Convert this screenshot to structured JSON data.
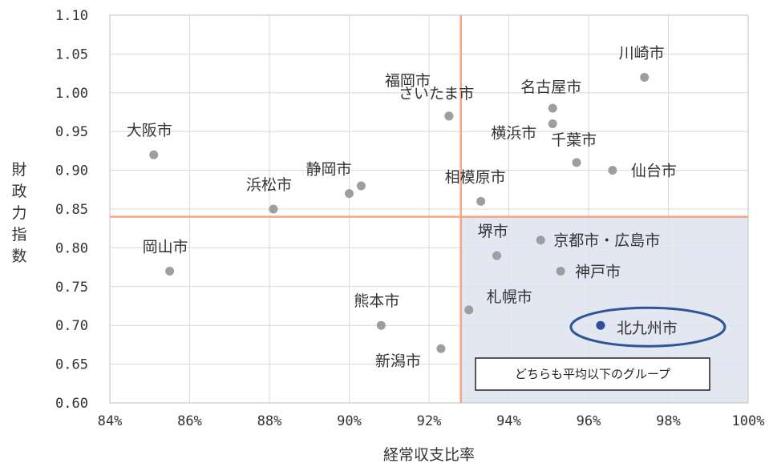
{
  "chart_data": {
    "type": "scatter",
    "title": "",
    "xlabel": "経常収支比率",
    "ylabel": "財政力指数",
    "xlim": [
      84,
      100
    ],
    "ylim": [
      0.6,
      1.1
    ],
    "x_ticks": [
      "84%",
      "86%",
      "88%",
      "90%",
      "92%",
      "94%",
      "96%",
      "98%",
      "100%"
    ],
    "y_ticks": [
      "0.60",
      "0.65",
      "0.70",
      "0.75",
      "0.80",
      "0.85",
      "0.90",
      "0.95",
      "1.00",
      "1.05",
      "1.10"
    ],
    "grid": true,
    "average_lines": {
      "x": 92.8,
      "y": 0.84
    },
    "highlight_region_label": "どちらも平均以下のグループ",
    "points": [
      {
        "name": "大阪市",
        "x": 85.1,
        "y": 0.92
      },
      {
        "name": "岡山市",
        "x": 85.5,
        "y": 0.77
      },
      {
        "name": "浜松市",
        "x": 88.1,
        "y": 0.85
      },
      {
        "name": "静岡市",
        "x": 90.0,
        "y": 0.87
      },
      {
        "name": "",
        "x": 90.3,
        "y": 0.88
      },
      {
        "name": "熊本市",
        "x": 90.8,
        "y": 0.7
      },
      {
        "name": "福岡市",
        "x": 92.5,
        "y": 0.97
      },
      {
        "name": "新潟市",
        "x": 92.3,
        "y": 0.67
      },
      {
        "name": "さいたま市",
        "x": 92.5,
        "y": 0.97
      },
      {
        "name": "札幌市",
        "x": 93.0,
        "y": 0.72
      },
      {
        "name": "相模原市",
        "x": 93.3,
        "y": 0.86
      },
      {
        "name": "堺市",
        "x": 93.7,
        "y": 0.79
      },
      {
        "name": "京都市・広島市",
        "x": 94.8,
        "y": 0.81
      },
      {
        "name": "名古屋市",
        "x": 95.1,
        "y": 0.98
      },
      {
        "name": "横浜市",
        "x": 95.1,
        "y": 0.96
      },
      {
        "name": "神戸市",
        "x": 95.3,
        "y": 0.77
      },
      {
        "name": "千葉市",
        "x": 95.7,
        "y": 0.91
      },
      {
        "name": "北九州市",
        "x": 96.3,
        "y": 0.7,
        "highlight": true
      },
      {
        "name": "仙台市",
        "x": 96.6,
        "y": 0.9
      },
      {
        "name": "川崎市",
        "x": 97.4,
        "y": 1.02
      }
    ]
  },
  "colors": {
    "point": "#9e9e9e",
    "highlight_point": "#2f4f9a",
    "average_line": "#f4a582",
    "region_fill": "#dde3f0",
    "grid": "#d9d9d9",
    "ellipse": "#2f5597"
  }
}
